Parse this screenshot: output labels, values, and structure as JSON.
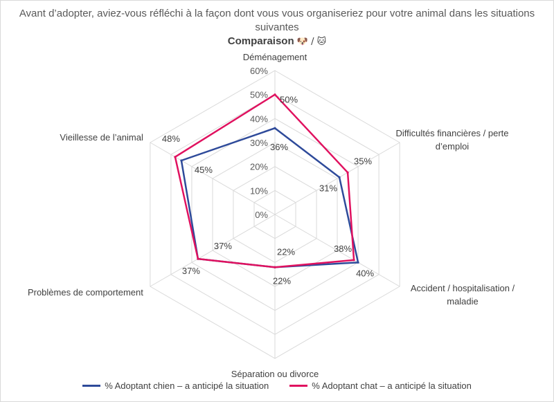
{
  "chart_data": {
    "type": "radar",
    "title": "Avant d’adopter, aviez-vous réfléchi à la façon dont vous vous organiseriez pour votre animal dans les situations suivantes",
    "subtitle": "Comparaison",
    "subtitle_emojis": "🐶 / 🐱",
    "categories": [
      "Déménagement",
      "Difficultés financières / perte d’emploi",
      "Accident / hospitalisation / maladie",
      "Séparation ou divorce",
      "Problèmes de comportement",
      "Vieillesse de l’animal"
    ],
    "category_lines": [
      [
        "Déménagement"
      ],
      [
        "Difficultés financières / perte",
        "d’emploi"
      ],
      [
        "Accident / hospitalisation /",
        "maladie"
      ],
      [
        "Séparation ou divorce"
      ],
      [
        "Problèmes de comportement"
      ],
      [
        "Vieillesse de l’animal"
      ]
    ],
    "rlim": [
      0,
      60
    ],
    "rticks": [
      0,
      10,
      20,
      30,
      40,
      50,
      60
    ],
    "rtick_labels": [
      "0%",
      "10%",
      "20%",
      "30%",
      "40%",
      "50%",
      "60%"
    ],
    "series": [
      {
        "name": "% Adoptant chien – a anticipé la situation",
        "color": "#2e4a9a",
        "values": [
          36,
          31,
          40,
          22,
          37,
          45
        ],
        "labels": [
          "36%",
          "31%",
          "40%",
          "22%",
          "37%",
          "45%"
        ]
      },
      {
        "name": "% Adoptant chat – a anticipé la situation",
        "color": "#e0115f",
        "values": [
          50,
          35,
          38,
          22,
          37,
          48
        ],
        "labels": [
          "50%",
          "35%",
          "38%",
          "22%",
          "37%",
          "48%"
        ]
      }
    ],
    "grid": true,
    "legend_position": "bottom"
  }
}
